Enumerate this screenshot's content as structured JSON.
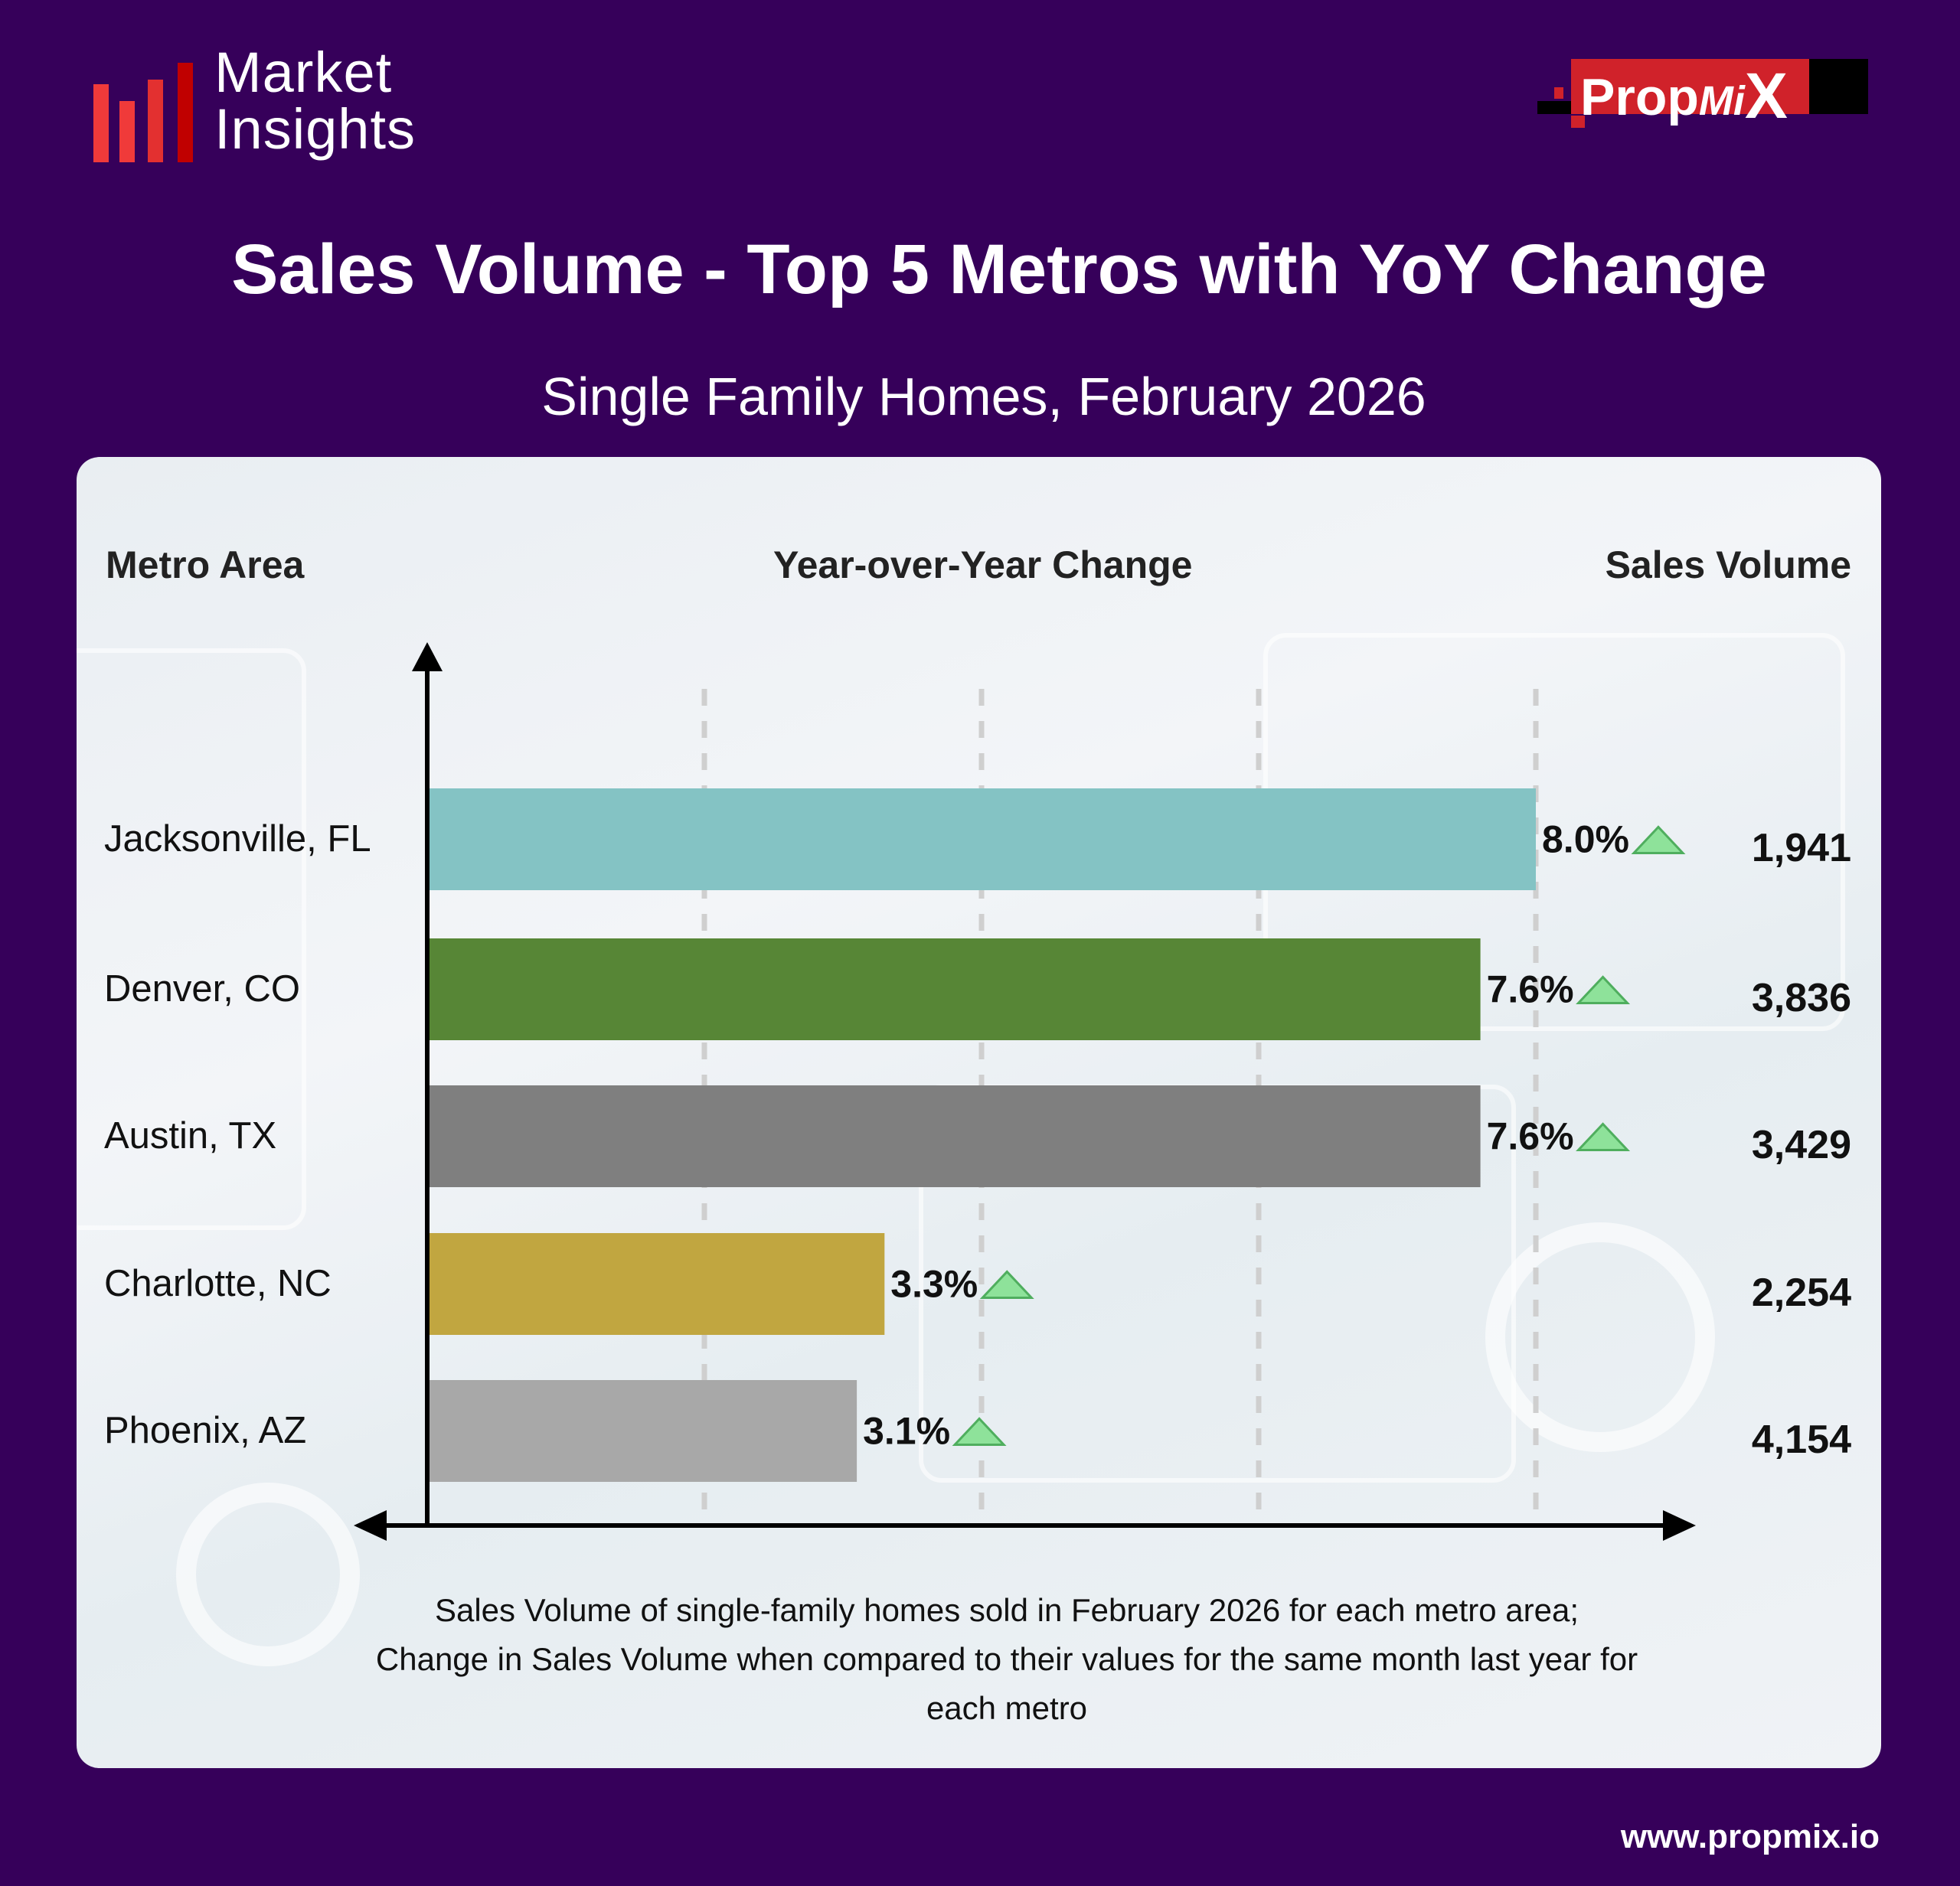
{
  "brand": {
    "logo_left": "Market Insights",
    "logo_left_line1": "Market",
    "logo_left_line2": "Insights",
    "logo_right": "PropMiX",
    "url": "www.propmix.io"
  },
  "colors": {
    "background": "#36005a",
    "up_arrow": "#8ee29a"
  },
  "headers": {
    "metro": "Metro Area",
    "change": "Year-over-Year Change",
    "volume": "Sales Volume"
  },
  "chart_data": {
    "type": "bar",
    "orientation": "horizontal",
    "title": "Sales Volume - Top 5 Metros with YoY Change",
    "subtitle": "Single Family Homes, February 2026",
    "xlabel": "Year-over-Year Change",
    "ylabel": "Metro Area",
    "xlim": [
      0,
      8.8
    ],
    "grid": "vertical dashed, every 2%",
    "categories": [
      "Jacksonville, FL",
      "Denver, CO",
      "Austin, TX",
      "Charlotte, NC",
      "Phoenix, AZ"
    ],
    "values": [
      8.0,
      7.6,
      7.6,
      3.3,
      3.1
    ],
    "value_labels": [
      "8.0%",
      "7.6%",
      "7.6%",
      "3.3%",
      "3.1%"
    ],
    "direction": [
      "up",
      "up",
      "up",
      "up",
      "up"
    ],
    "sales_volume": [
      "1,941",
      "3,836",
      "3,429",
      "2,254",
      "4,154"
    ],
    "bar_colors": [
      "#84c3c4",
      "#578636",
      "#7f7f7f",
      "#c1a640",
      "#a8a8a8"
    ],
    "note": [
      "Sales Volume of single-family homes sold in February 2026 for each metro area;",
      "Change in Sales Volume when compared to their values for the same month last year for",
      "each metro"
    ]
  }
}
